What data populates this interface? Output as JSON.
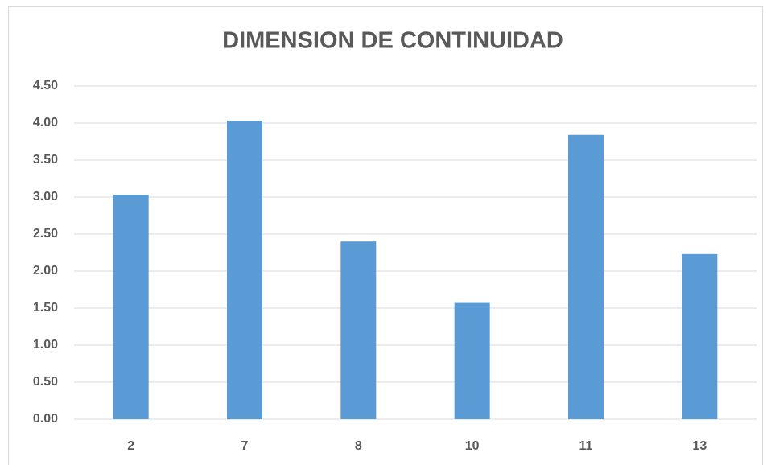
{
  "chart_data": {
    "type": "bar",
    "title": "DIMENSION DE CONTINUIDAD",
    "categories": [
      "2",
      "7",
      "8",
      "10",
      "11",
      "13"
    ],
    "values": [
      3.03,
      4.03,
      2.4,
      1.57,
      3.84,
      2.23
    ],
    "color": "#5b9bd5",
    "ylim": [
      0,
      4.5
    ],
    "yticks": [
      {
        "value": 0,
        "label": "0.00"
      },
      {
        "value": 0.5,
        "label": "0.50"
      },
      {
        "value": 1,
        "label": "1.00"
      },
      {
        "value": 1.5,
        "label": "1.50"
      },
      {
        "value": 2,
        "label": "2.00"
      },
      {
        "value": 2.5,
        "label": "2.50"
      },
      {
        "value": 3,
        "label": "3.00"
      },
      {
        "value": 3.5,
        "label": "3.50"
      },
      {
        "value": 4,
        "label": "4.00"
      },
      {
        "value": 4.5,
        "label": "4.50"
      }
    ],
    "grid": true
  }
}
